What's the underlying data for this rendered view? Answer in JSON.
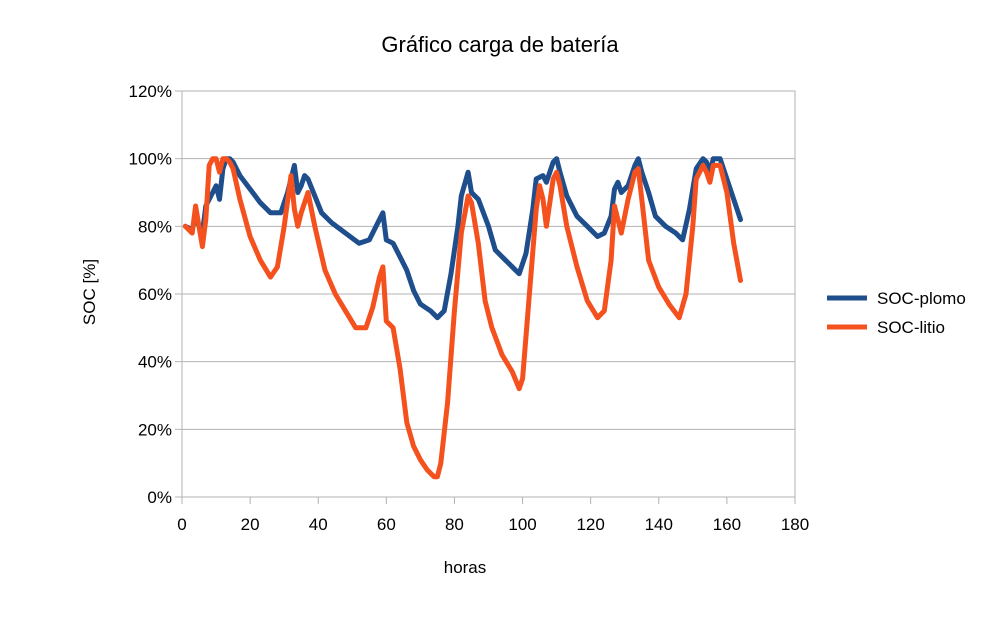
{
  "chart_data": {
    "type": "line",
    "title": "Gráfico carga de batería",
    "xlabel": "horas",
    "ylabel": "SOC [%]",
    "xlim": [
      0,
      180
    ],
    "ylim": [
      0,
      120
    ],
    "x_ticks": [
      0,
      20,
      40,
      60,
      80,
      100,
      120,
      140,
      160,
      180
    ],
    "y_ticks": [
      0,
      20,
      40,
      60,
      80,
      100,
      120
    ],
    "y_tick_labels": [
      "0%",
      "20%",
      "40%",
      "60%",
      "80%",
      "100%",
      "120%"
    ],
    "grid": true,
    "legend_position": "right",
    "series": [
      {
        "name": "SOC-plomo",
        "color": "#1f4e8c",
        "points": [
          [
            1,
            80
          ],
          [
            3,
            79
          ],
          [
            4,
            83
          ],
          [
            5,
            80
          ],
          [
            6,
            78
          ],
          [
            7,
            86
          ],
          [
            8,
            88
          ],
          [
            9,
            90
          ],
          [
            10,
            92
          ],
          [
            11,
            88
          ],
          [
            12,
            97
          ],
          [
            13,
            100
          ],
          [
            14,
            100
          ],
          [
            15,
            99
          ],
          [
            17,
            95
          ],
          [
            20,
            91
          ],
          [
            23,
            87
          ],
          [
            26,
            84
          ],
          [
            29,
            84
          ],
          [
            31,
            90
          ],
          [
            33,
            98
          ],
          [
            34,
            90
          ],
          [
            35,
            92
          ],
          [
            36,
            95
          ],
          [
            37,
            94
          ],
          [
            39,
            89
          ],
          [
            41,
            84
          ],
          [
            44,
            81
          ],
          [
            48,
            78
          ],
          [
            52,
            75
          ],
          [
            55,
            76
          ],
          [
            57,
            80
          ],
          [
            59,
            84
          ],
          [
            60,
            76
          ],
          [
            62,
            75
          ],
          [
            64,
            71
          ],
          [
            66,
            67
          ],
          [
            68,
            61
          ],
          [
            70,
            57
          ],
          [
            73,
            55
          ],
          [
            75,
            53
          ],
          [
            77,
            55
          ],
          [
            79,
            66
          ],
          [
            81,
            80
          ],
          [
            82,
            89
          ],
          [
            84,
            96
          ],
          [
            85,
            90
          ],
          [
            87,
            88
          ],
          [
            90,
            80
          ],
          [
            92,
            73
          ],
          [
            95,
            70
          ],
          [
            98,
            67
          ],
          [
            99,
            66
          ],
          [
            101,
            72
          ],
          [
            103,
            85
          ],
          [
            104,
            94
          ],
          [
            106,
            95
          ],
          [
            107,
            93
          ],
          [
            109,
            99
          ],
          [
            110,
            100
          ],
          [
            111,
            96
          ],
          [
            113,
            89
          ],
          [
            116,
            83
          ],
          [
            119,
            80
          ],
          [
            122,
            77
          ],
          [
            124,
            78
          ],
          [
            126,
            83
          ],
          [
            127,
            91
          ],
          [
            128,
            93
          ],
          [
            129,
            90
          ],
          [
            131,
            92
          ],
          [
            133,
            98
          ],
          [
            134,
            100
          ],
          [
            135,
            96
          ],
          [
            137,
            90
          ],
          [
            139,
            83
          ],
          [
            142,
            80
          ],
          [
            145,
            78
          ],
          [
            147,
            76
          ],
          [
            149,
            85
          ],
          [
            151,
            97
          ],
          [
            153,
            100
          ],
          [
            154,
            99
          ],
          [
            155,
            96
          ],
          [
            156,
            100
          ],
          [
            158,
            100
          ],
          [
            160,
            94
          ],
          [
            162,
            88
          ],
          [
            164,
            82
          ]
        ]
      },
      {
        "name": "SOC-litio",
        "color": "#f4511e",
        "points": [
          [
            1,
            80
          ],
          [
            3,
            78
          ],
          [
            4,
            86
          ],
          [
            5,
            80
          ],
          [
            6,
            74
          ],
          [
            7,
            82
          ],
          [
            8,
            98
          ],
          [
            9,
            100
          ],
          [
            10,
            100
          ],
          [
            11,
            96
          ],
          [
            12,
            100
          ],
          [
            13,
            100
          ],
          [
            14,
            99
          ],
          [
            15,
            97
          ],
          [
            17,
            88
          ],
          [
            20,
            77
          ],
          [
            23,
            70
          ],
          [
            26,
            65
          ],
          [
            28,
            68
          ],
          [
            30,
            80
          ],
          [
            32,
            95
          ],
          [
            33,
            85
          ],
          [
            34,
            80
          ],
          [
            35,
            84
          ],
          [
            37,
            90
          ],
          [
            39,
            80
          ],
          [
            42,
            67
          ],
          [
            45,
            60
          ],
          [
            48,
            55
          ],
          [
            51,
            50
          ],
          [
            54,
            50
          ],
          [
            56,
            56
          ],
          [
            58,
            65
          ],
          [
            59,
            68
          ],
          [
            60,
            52
          ],
          [
            62,
            50
          ],
          [
            64,
            38
          ],
          [
            66,
            22
          ],
          [
            68,
            15
          ],
          [
            70,
            11
          ],
          [
            72,
            8
          ],
          [
            74,
            6
          ],
          [
            75,
            6
          ],
          [
            76,
            10
          ],
          [
            78,
            28
          ],
          [
            80,
            55
          ],
          [
            82,
            78
          ],
          [
            84,
            89
          ],
          [
            85,
            87
          ],
          [
            87,
            75
          ],
          [
            89,
            58
          ],
          [
            91,
            50
          ],
          [
            94,
            42
          ],
          [
            97,
            37
          ],
          [
            99,
            32
          ],
          [
            100,
            35
          ],
          [
            102,
            60
          ],
          [
            104,
            85
          ],
          [
            105,
            92
          ],
          [
            106,
            88
          ],
          [
            107,
            80
          ],
          [
            109,
            94
          ],
          [
            110,
            96
          ],
          [
            111,
            92
          ],
          [
            113,
            80
          ],
          [
            116,
            68
          ],
          [
            119,
            58
          ],
          [
            122,
            53
          ],
          [
            124,
            55
          ],
          [
            126,
            70
          ],
          [
            127,
            86
          ],
          [
            128,
            82
          ],
          [
            129,
            78
          ],
          [
            131,
            88
          ],
          [
            133,
            96
          ],
          [
            134,
            97
          ],
          [
            135,
            88
          ],
          [
            137,
            70
          ],
          [
            140,
            62
          ],
          [
            143,
            57
          ],
          [
            146,
            53
          ],
          [
            148,
            60
          ],
          [
            150,
            80
          ],
          [
            151,
            94
          ],
          [
            153,
            98
          ],
          [
            154,
            96
          ],
          [
            155,
            93
          ],
          [
            156,
            98
          ],
          [
            158,
            98
          ],
          [
            160,
            90
          ],
          [
            162,
            75
          ],
          [
            164,
            64
          ]
        ]
      }
    ]
  }
}
